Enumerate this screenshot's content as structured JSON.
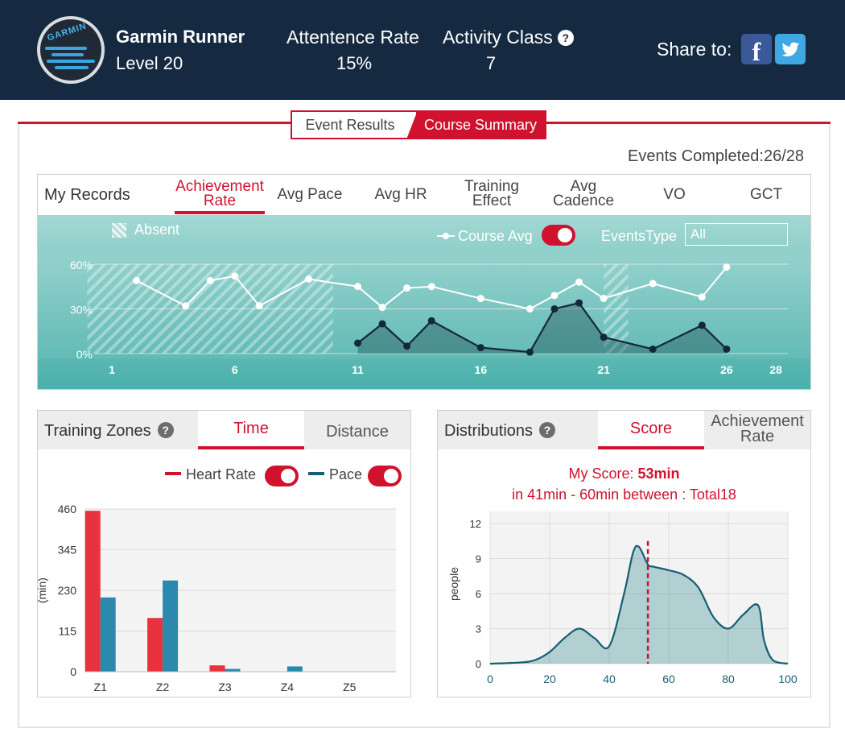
{
  "header": {
    "logo_text": "GARMIN",
    "user_name": "Garmin Runner",
    "user_level": "Level 20",
    "attendance_label": "Attentence Rate",
    "attendance_value": "15%",
    "activity_label": "Activity Class",
    "activity_value": "7",
    "help_symbol": "?",
    "share_label": "Share to:",
    "facebook_glyph": "f",
    "icons": [
      "facebook-icon",
      "twitter-icon",
      "help-icon"
    ]
  },
  "tabs": {
    "event_results": "Event Results",
    "course_summary": "Course Summary",
    "active": "course_summary"
  },
  "events_completed": "Events Completed:26/28",
  "records": {
    "title": "My Records",
    "tabs": [
      {
        "label": "Achievement\nRate",
        "active": true
      },
      {
        "label": "Avg Pace"
      },
      {
        "label": "Avg HR"
      },
      {
        "label": "Training\nEffect"
      },
      {
        "label": "Avg\nCadence"
      },
      {
        "label": "VO"
      },
      {
        "label": "GCT"
      }
    ],
    "absent_label": "Absent",
    "course_avg_label": "Course Avg",
    "course_avg_toggle": true,
    "events_type_label": "EventsType",
    "events_type_value": "All"
  },
  "training_zones": {
    "title": "Training Zones",
    "help_symbol": "?",
    "tab_time": "Time",
    "tab_distance": "Distance",
    "active_tab": "Time",
    "legend_heart_rate": "Heart Rate",
    "legend_pace": "Pace",
    "heart_rate_toggle": true,
    "pace_toggle": true
  },
  "distributions": {
    "title": "Distributions",
    "help_symbol": "?",
    "tab_score": "Score",
    "tab_achievement": "Achievement\nRate",
    "active_tab": "Score",
    "my_score_prefix": "My Score: ",
    "my_score_value": "53min",
    "range_text": "in 41min - 60min between : Total18"
  },
  "colors": {
    "brand_red": "#d0122e",
    "header_bg": "#152a40",
    "teal": "#4bb0ab",
    "pace_blue": "#2a89ad",
    "heart_red": "#e8323e",
    "dark_navy": "#14283c"
  },
  "chart_data": [
    {
      "type": "line",
      "name": "My Records - Achievement Rate",
      "x_ticks": [
        1,
        6,
        11,
        16,
        21,
        26,
        28
      ],
      "xlim": [
        1,
        28
      ],
      "ylim": [
        0,
        60
      ],
      "y_ticks": [
        "0%",
        "30%",
        "60%"
      ],
      "absent_ranges": [
        [
          0,
          10
        ],
        [
          21,
          22
        ]
      ],
      "series": [
        {
          "name": "Course Avg",
          "x": [
            2,
            4,
            5,
            6,
            7,
            9,
            11,
            12,
            13,
            14,
            16,
            18,
            19,
            20,
            21,
            23,
            25,
            26
          ],
          "y": [
            49,
            32,
            49,
            52,
            32,
            50,
            45,
            31,
            44,
            45,
            37,
            30,
            39,
            48,
            37,
            47,
            38,
            58
          ]
        },
        {
          "name": "My Rate",
          "x": [
            11,
            12,
            13,
            14,
            16,
            18,
            19,
            20,
            21,
            23,
            25,
            26
          ],
          "y": [
            7,
            20,
            5,
            22,
            4,
            1,
            30,
            34,
            11,
            3,
            19,
            3
          ]
        }
      ]
    },
    {
      "type": "bar",
      "name": "Training Zones",
      "categories": [
        "Z1",
        "Z2",
        "Z3",
        "Z4",
        "Z5"
      ],
      "ylabel": "(min)",
      "y_ticks": [
        0,
        115,
        230,
        345,
        460
      ],
      "ylim": [
        0,
        460
      ],
      "series": [
        {
          "name": "Heart Rate",
          "values": [
            455,
            152,
            18,
            0,
            0
          ]
        },
        {
          "name": "Pace",
          "values": [
            210,
            258,
            8,
            15,
            0
          ]
        }
      ]
    },
    {
      "type": "area",
      "name": "Distributions",
      "ylabel": "people",
      "x_ticks": [
        0,
        20,
        40,
        60,
        80,
        100
      ],
      "y_ticks": [
        0,
        3,
        6,
        9,
        12
      ],
      "xlim": [
        0,
        100
      ],
      "ylim": [
        0,
        12
      ],
      "marker_x": 53,
      "x": [
        0,
        10,
        15,
        20,
        25,
        30,
        35,
        40,
        45,
        48,
        50,
        53,
        55,
        60,
        65,
        70,
        75,
        80,
        85,
        90,
        92,
        95,
        100
      ],
      "y": [
        0,
        0.1,
        0.3,
        1.0,
        2.2,
        3.0,
        2.2,
        1.5,
        6.0,
        9.5,
        10.0,
        8.5,
        8.3,
        8.0,
        7.6,
        6.5,
        4.0,
        3.0,
        4.2,
        5.0,
        2.0,
        0.3,
        0
      ]
    }
  ]
}
